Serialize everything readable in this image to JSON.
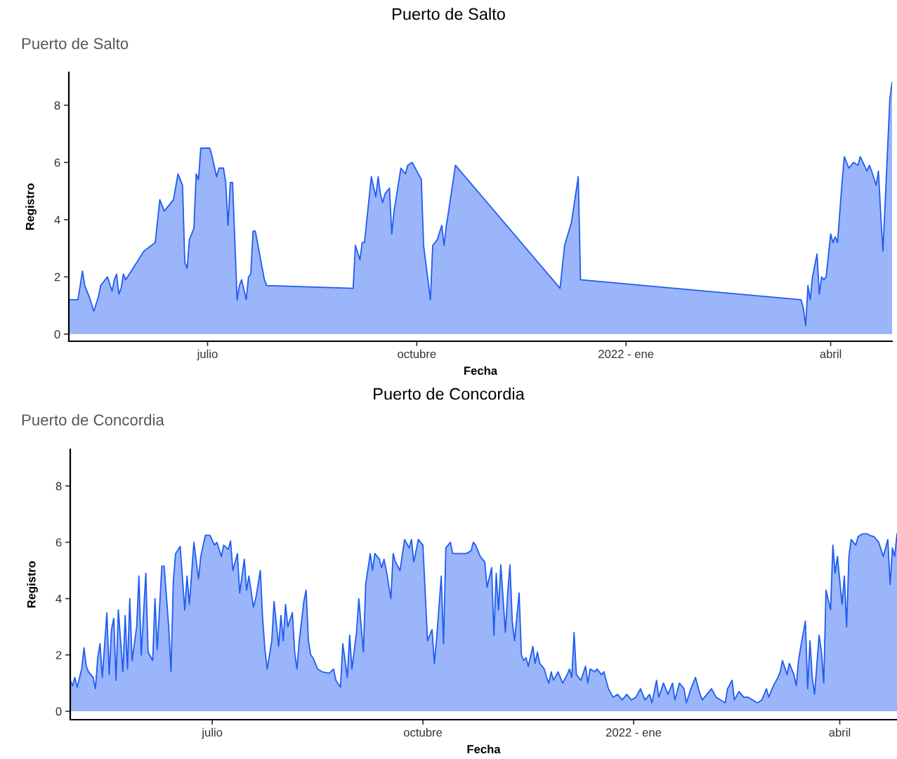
{
  "chart_data": [
    {
      "type": "area",
      "title": "Puerto de Salto",
      "subtitle": "Puerto de Salto",
      "xlabel": "Fecha",
      "ylabel": "Registro",
      "x": [
        "2021-05-01",
        "2021-05-05",
        "2021-05-07",
        "2021-05-08",
        "2021-05-10",
        "2021-05-12",
        "2021-05-14",
        "2021-05-15",
        "2021-05-17",
        "2021-05-18",
        "2021-05-20",
        "2021-05-21",
        "2021-05-22",
        "2021-05-23",
        "2021-05-24",
        "2021-05-25",
        "2021-05-26",
        "2021-06-03",
        "2021-06-08",
        "2021-06-10",
        "2021-06-12",
        "2021-06-16",
        "2021-06-18",
        "2021-06-20",
        "2021-06-21",
        "2021-06-22",
        "2021-06-23",
        "2021-06-25",
        "2021-06-26",
        "2021-06-27",
        "2021-06-28",
        "2021-07-02",
        "2021-07-03",
        "2021-07-05",
        "2021-07-06",
        "2021-07-08",
        "2021-07-09",
        "2021-07-10",
        "2021-07-11",
        "2021-07-12",
        "2021-07-14",
        "2021-07-15",
        "2021-07-16",
        "2021-07-18",
        "2021-07-19",
        "2021-07-20",
        "2021-07-21",
        "2021-07-22",
        "2021-07-26",
        "2021-07-27",
        "2021-09-03",
        "2021-09-04",
        "2021-09-06",
        "2021-09-07",
        "2021-09-08",
        "2021-09-11",
        "2021-09-13",
        "2021-09-14",
        "2021-09-15",
        "2021-09-16",
        "2021-09-17",
        "2021-09-19",
        "2021-09-20",
        "2021-09-21",
        "2021-09-24",
        "2021-09-26",
        "2021-09-27",
        "2021-09-29",
        "2021-10-03",
        "2021-10-04",
        "2021-10-07",
        "2021-10-08",
        "2021-10-10",
        "2021-10-12",
        "2021-10-13",
        "2021-10-14",
        "2021-10-15",
        "2021-10-18",
        "2021-12-03",
        "2021-12-05",
        "2021-12-08",
        "2021-12-11",
        "2021-12-12",
        "2022-03-19",
        "2022-03-20",
        "2022-03-21",
        "2022-03-22",
        "2022-03-23",
        "2022-03-24",
        "2022-03-26",
        "2022-03-27",
        "2022-03-28",
        "2022-03-29",
        "2022-03-30",
        "2022-04-01",
        "2022-04-02",
        "2022-04-03",
        "2022-04-04",
        "2022-04-06",
        "2022-04-07",
        "2022-04-09",
        "2022-04-11",
        "2022-04-13",
        "2022-04-14",
        "2022-04-17",
        "2022-04-18",
        "2022-04-19",
        "2022-04-21",
        "2022-04-22",
        "2022-04-23",
        "2022-04-24",
        "2022-04-27",
        "2022-04-28"
      ],
      "values": [
        1.2,
        1.2,
        2.2,
        1.7,
        1.3,
        0.8,
        1.3,
        1.7,
        1.9,
        2.0,
        1.5,
        1.9,
        2.1,
        1.4,
        1.6,
        2.1,
        1.9,
        2.9,
        3.2,
        4.7,
        4.3,
        4.7,
        5.6,
        5.2,
        2.5,
        2.3,
        3.3,
        3.7,
        5.6,
        5.4,
        6.5,
        6.5,
        6.2,
        5.5,
        5.8,
        5.8,
        5.3,
        3.8,
        5.3,
        5.3,
        1.2,
        1.7,
        1.9,
        1.2,
        2.0,
        2.1,
        3.6,
        3.6,
        1.9,
        1.7,
        1.6,
        3.1,
        2.6,
        3.2,
        3.2,
        5.5,
        4.8,
        5.5,
        4.9,
        4.6,
        4.9,
        5.1,
        3.5,
        4.3,
        5.8,
        5.6,
        5.9,
        6.0,
        5.4,
        3.1,
        1.2,
        3.1,
        3.3,
        3.8,
        3.1,
        3.8,
        4.3,
        5.9,
        1.6,
        3.1,
        3.9,
        5.5,
        1.9,
        1.2,
        0.9,
        0.3,
        1.7,
        1.2,
        2.0,
        2.8,
        1.4,
        2.0,
        1.9,
        2.0,
        3.5,
        3.2,
        3.4,
        3.2,
        5.3,
        6.2,
        5.8,
        6.0,
        5.9,
        6.2,
        5.7,
        5.9,
        5.7,
        5.2,
        5.7,
        4.2,
        2.9,
        8.2,
        8.8
      ],
      "color": "#1f5cf2",
      "xlim": [
        "2021-05-01",
        "2022-04-28"
      ],
      "ylim": [
        -0.25,
        9.15
      ],
      "yticks": [
        0,
        2,
        4,
        6,
        8
      ],
      "xticks": [
        {
          "value": "2021-07-01",
          "label": "julio"
        },
        {
          "value": "2021-10-01",
          "label": "octubre"
        },
        {
          "value": "2022-01-01",
          "label": "2022 - ene"
        },
        {
          "value": "2022-04-01",
          "label": "abril"
        }
      ],
      "grid": false
    },
    {
      "type": "area",
      "title": "Puerto de Concordia",
      "subtitle": "Puerto de Concordia",
      "xlabel": "Fecha",
      "ylabel": "Registro",
      "x": [
        "2021-04-30",
        "2021-05-01",
        "2021-05-02",
        "2021-05-03",
        "2021-05-05",
        "2021-05-06",
        "2021-05-07",
        "2021-05-08",
        "2021-05-10",
        "2021-05-11",
        "2021-05-12",
        "2021-05-13",
        "2021-05-14",
        "2021-05-16",
        "2021-05-17",
        "2021-05-18",
        "2021-05-19",
        "2021-05-20",
        "2021-05-21",
        "2021-05-23",
        "2021-05-24",
        "2021-05-25",
        "2021-05-26",
        "2021-05-27",
        "2021-05-29",
        "2021-05-30",
        "2021-05-31",
        "2021-06-02",
        "2021-06-03",
        "2021-06-05",
        "2021-06-06",
        "2021-06-07",
        "2021-06-09",
        "2021-06-10",
        "2021-06-12",
        "2021-06-13",
        "2021-06-14",
        "2021-06-15",
        "2021-06-17",
        "2021-06-19",
        "2021-06-20",
        "2021-06-21",
        "2021-06-23",
        "2021-06-25",
        "2021-06-26",
        "2021-06-28",
        "2021-06-30",
        "2021-07-02",
        "2021-07-03",
        "2021-07-05",
        "2021-07-06",
        "2021-07-08",
        "2021-07-09",
        "2021-07-10",
        "2021-07-12",
        "2021-07-13",
        "2021-07-15",
        "2021-07-16",
        "2021-07-17",
        "2021-07-19",
        "2021-07-20",
        "2021-07-22",
        "2021-07-23",
        "2021-07-24",
        "2021-07-25",
        "2021-07-27",
        "2021-07-28",
        "2021-07-30",
        "2021-07-31",
        "2021-08-01",
        "2021-08-02",
        "2021-08-03",
        "2021-08-05",
        "2021-08-06",
        "2021-08-07",
        "2021-08-08",
        "2021-08-10",
        "2021-08-11",
        "2021-08-12",
        "2021-08-13",
        "2021-08-14",
        "2021-08-16",
        "2021-08-18",
        "2021-08-21",
        "2021-08-23",
        "2021-08-24",
        "2021-08-26",
        "2021-08-27",
        "2021-08-29",
        "2021-08-30",
        "2021-08-31",
        "2021-09-02",
        "2021-09-03",
        "2021-09-05",
        "2021-09-06",
        "2021-09-08",
        "2021-09-09",
        "2021-09-10",
        "2021-09-12",
        "2021-09-13",
        "2021-09-14",
        "2021-09-15",
        "2021-09-17",
        "2021-09-18",
        "2021-09-19",
        "2021-09-21",
        "2021-09-23",
        "2021-09-25",
        "2021-09-26",
        "2021-09-27",
        "2021-09-29",
        "2021-10-01",
        "2021-10-02",
        "2021-10-03",
        "2021-10-05",
        "2021-10-06",
        "2021-10-07",
        "2021-10-09",
        "2021-10-10",
        "2021-10-11",
        "2021-10-13",
        "2021-10-14",
        "2021-10-16",
        "2021-10-19",
        "2021-10-20",
        "2021-10-22",
        "2021-10-23",
        "2021-10-24",
        "2021-10-26",
        "2021-10-28",
        "2021-10-29",
        "2021-10-31",
        "2021-11-01",
        "2021-11-02",
        "2021-11-03",
        "2021-11-04",
        "2021-11-06",
        "2021-11-07",
        "2021-11-08",
        "2021-11-09",
        "2021-11-10",
        "2021-11-12",
        "2021-11-13",
        "2021-11-14",
        "2021-11-15",
        "2021-11-16",
        "2021-11-18",
        "2021-11-19",
        "2021-11-20",
        "2021-11-21",
        "2021-11-23",
        "2021-11-24",
        "2021-11-25",
        "2021-11-26",
        "2021-11-27",
        "2021-11-29",
        "2021-12-01",
        "2021-12-03",
        "2021-12-04",
        "2021-12-05",
        "2021-12-06",
        "2021-12-07",
        "2021-12-09",
        "2021-12-11",
        "2021-12-12",
        "2021-12-13",
        "2021-12-15",
        "2021-12-16",
        "2021-12-18",
        "2021-12-19",
        "2021-12-21",
        "2021-12-23",
        "2021-12-25",
        "2021-12-27",
        "2021-12-29",
        "2021-12-31",
        "2022-01-02",
        "2022-01-04",
        "2022-01-06",
        "2022-01-08",
        "2022-01-09",
        "2022-01-11",
        "2022-01-12",
        "2022-01-14",
        "2022-01-16",
        "2022-01-18",
        "2022-01-19",
        "2022-01-21",
        "2022-01-23",
        "2022-01-24",
        "2022-01-26",
        "2022-01-28",
        "2022-01-30",
        "2022-01-31",
        "2022-02-02",
        "2022-02-04",
        "2022-02-06",
        "2022-02-08",
        "2022-02-10",
        "2022-02-11",
        "2022-02-13",
        "2022-02-14",
        "2022-02-16",
        "2022-02-18",
        "2022-02-20",
        "2022-02-22",
        "2022-02-24",
        "2022-02-26",
        "2022-02-27",
        "2022-02-28",
        "2022-03-01",
        "2022-03-03",
        "2022-03-05",
        "2022-03-06",
        "2022-03-07",
        "2022-03-09",
        "2022-03-10",
        "2022-03-12",
        "2022-03-13",
        "2022-03-14",
        "2022-03-15",
        "2022-03-17",
        "2022-03-18",
        "2022-03-19",
        "2022-03-20",
        "2022-03-21",
        "2022-03-23",
        "2022-03-24",
        "2022-03-25",
        "2022-03-26",
        "2022-03-28",
        "2022-03-29",
        "2022-03-30",
        "2022-03-31",
        "2022-04-02",
        "2022-04-03",
        "2022-04-04",
        "2022-04-05",
        "2022-04-06",
        "2022-04-08",
        "2022-04-09",
        "2022-04-11",
        "2022-04-13",
        "2022-04-14",
        "2022-04-16",
        "2022-04-18",
        "2022-04-20",
        "2022-04-22",
        "2022-04-23",
        "2022-04-24",
        "2022-04-25",
        "2022-04-26"
      ],
      "values": [
        1.1,
        0.9,
        1.2,
        0.85,
        1.5,
        2.25,
        1.6,
        1.4,
        1.2,
        0.8,
        1.9,
        2.4,
        1.2,
        3.5,
        1.3,
        2.9,
        3.3,
        1.1,
        3.6,
        1.4,
        3.4,
        1.5,
        4.0,
        1.8,
        3.0,
        4.8,
        2.0,
        4.9,
        2.1,
        1.8,
        4.0,
        2.2,
        5.15,
        5.15,
        3.0,
        1.4,
        4.6,
        5.6,
        5.85,
        3.6,
        4.8,
        3.8,
        6.0,
        4.7,
        5.5,
        6.25,
        6.25,
        5.9,
        6.0,
        5.5,
        5.9,
        5.75,
        6.05,
        5.0,
        5.6,
        4.2,
        5.4,
        4.3,
        4.8,
        3.7,
        4.0,
        5.0,
        3.3,
        2.2,
        1.5,
        2.5,
        3.9,
        2.3,
        3.4,
        2.5,
        3.8,
        3.0,
        3.5,
        2.1,
        1.5,
        2.5,
        3.9,
        4.3,
        2.5,
        2.0,
        1.9,
        1.5,
        1.4,
        1.35,
        1.5,
        1.1,
        0.85,
        2.4,
        1.2,
        2.7,
        1.5,
        2.8,
        4.0,
        2.1,
        4.5,
        5.6,
        5.0,
        5.6,
        5.4,
        5.1,
        5.4,
        5.0,
        4.0,
        5.6,
        5.3,
        5.0,
        6.1,
        5.8,
        6.1,
        5.3,
        6.1,
        5.9,
        4.2,
        2.5,
        2.9,
        1.7,
        2.6,
        4.8,
        2.4,
        5.8,
        6.0,
        5.6,
        5.6,
        5.6,
        5.6,
        5.7,
        6.0,
        5.9,
        5.5,
        5.3,
        4.4,
        5.1,
        2.7,
        4.9,
        3.6,
        5.2,
        2.8,
        4.2,
        5.2,
        3.2,
        2.5,
        4.2,
        2.0,
        1.8,
        1.9,
        1.6,
        2.3,
        1.7,
        2.1,
        1.7,
        1.5,
        1.2,
        1.0,
        1.4,
        1.1,
        1.4,
        1.0,
        1.3,
        1.5,
        1.2,
        2.8,
        1.3,
        1.1,
        1.6,
        1.0,
        1.5,
        1.4,
        1.5,
        1.3,
        1.4,
        0.8,
        0.5,
        0.6,
        0.4,
        0.6,
        0.4,
        0.5,
        0.8,
        0.4,
        0.6,
        0.3,
        1.1,
        0.5,
        1.0,
        0.6,
        1.0,
        0.4,
        1.0,
        0.8,
        0.3,
        0.8,
        1.2,
        0.6,
        0.4,
        0.6,
        0.8,
        0.5,
        0.4,
        0.3,
        0.8,
        1.1,
        0.4,
        0.7,
        0.5,
        0.5,
        0.4,
        0.3,
        0.4,
        0.6,
        0.8,
        0.5,
        0.9,
        1.2,
        1.4,
        1.8,
        1.3,
        1.7,
        1.3,
        0.9,
        1.8,
        2.3,
        3.2,
        0.8,
        2.5,
        1.2,
        0.6,
        2.7,
        2.1,
        1.0,
        4.3,
        3.6,
        5.9,
        4.9,
        5.5,
        3.8,
        4.8,
        3.0,
        5.5,
        6.1,
        5.9,
        6.2,
        6.3,
        6.3,
        6.25,
        6.2,
        6.0,
        5.5,
        6.1,
        4.5,
        5.8,
        5.5,
        6.3
      ],
      "color": "#1f5cf2",
      "xlim": [
        "2021-04-30",
        "2022-04-26"
      ],
      "ylim": [
        -0.3,
        9.3
      ],
      "yticks": [
        0,
        2,
        4,
        6,
        8
      ],
      "xticks": [
        {
          "value": "2021-07-01",
          "label": "julio"
        },
        {
          "value": "2021-10-01",
          "label": "octubre"
        },
        {
          "value": "2022-01-01",
          "label": "2022 - ene"
        },
        {
          "value": "2022-04-01",
          "label": "abril"
        }
      ],
      "grid": false
    }
  ]
}
